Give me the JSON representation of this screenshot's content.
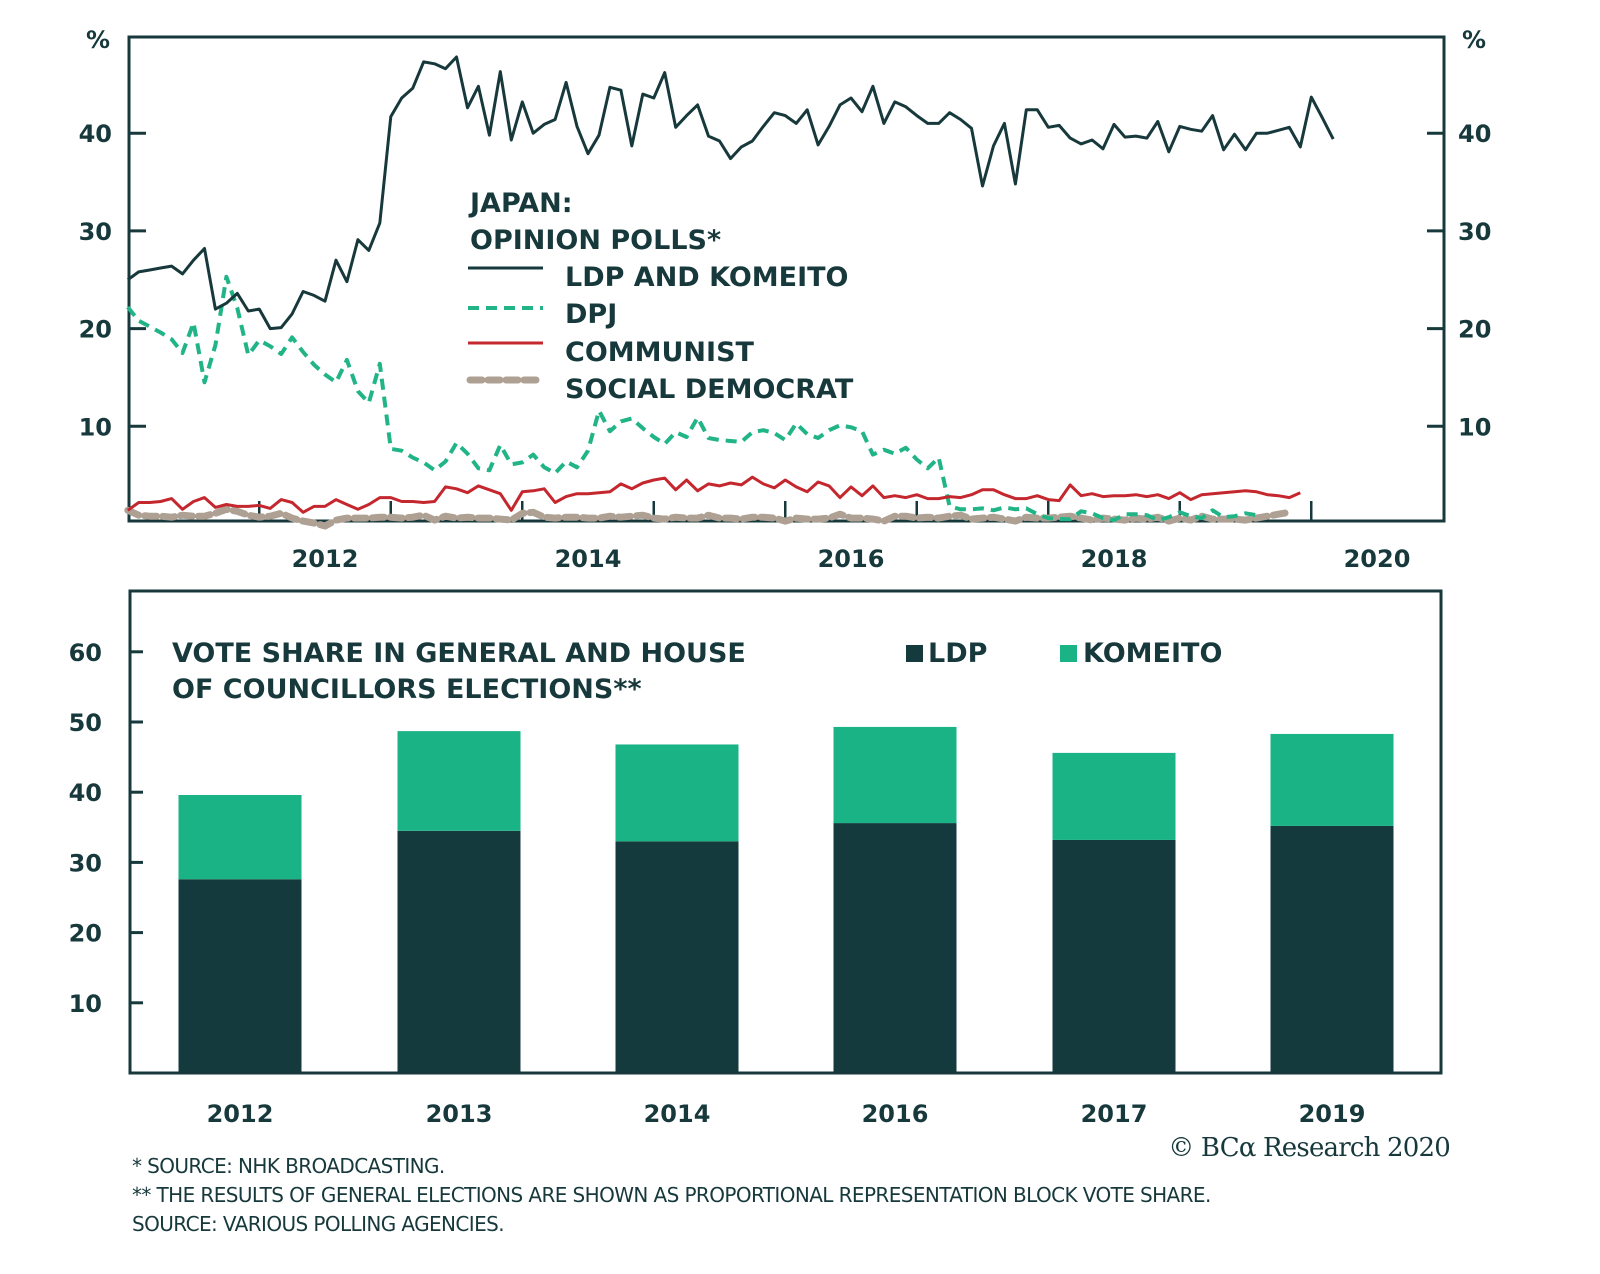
{
  "chart_data": [
    {
      "type": "line",
      "title": "JAPAN:",
      "subtitle": "OPINION POLLS*",
      "ylabel_left": "%",
      "ylabel_right": "%",
      "ylim": [
        0,
        50
      ],
      "yticks": [
        10,
        20,
        30,
        40
      ],
      "xlim": [
        2010.42,
        2020.42
      ],
      "xticks": [
        2012,
        2014,
        2016,
        2018,
        2020
      ],
      "xtick_labels": [
        "2012",
        "2014",
        "2016",
        "2018",
        "2020"
      ],
      "x_start": 2010.5,
      "x_step_months": 1,
      "legend_placement": "center-left",
      "grid": false,
      "series": [
        {
          "name": "LDP AND KOMEITO",
          "color": "#17393c",
          "style": "solid",
          "values": [
            25.0,
            25.8,
            26.0,
            26.2,
            26.4,
            25.6,
            27.0,
            28.2,
            22.0,
            22.6,
            23.6,
            21.8,
            22.0,
            20.0,
            20.1,
            21.5,
            23.8,
            23.4,
            22.8,
            27.0,
            24.8,
            29.1,
            28.0,
            30.8,
            41.7,
            43.6,
            44.6,
            47.3,
            47.1,
            46.6,
            47.8,
            42.6,
            44.8,
            39.8,
            46.3,
            39.3,
            43.2,
            40.0,
            40.9,
            41.4,
            45.2,
            40.7,
            37.9,
            39.8,
            44.7,
            44.4,
            38.7,
            44.0,
            43.6,
            46.2,
            40.6,
            41.8,
            42.9,
            39.7,
            39.2,
            37.4,
            38.6,
            39.2,
            40.7,
            42.1,
            41.8,
            41.0,
            42.4,
            38.8,
            40.7,
            42.9,
            43.6,
            42.2,
            44.8,
            41.0,
            43.2,
            42.7,
            41.8,
            41.0,
            41.0,
            42.1,
            41.4,
            40.5,
            34.6,
            38.7,
            41.0,
            34.8,
            42.4,
            42.4,
            40.6,
            40.8,
            39.5,
            38.9,
            39.3,
            38.4,
            40.9,
            39.6,
            39.7,
            39.5,
            41.2,
            38.1,
            40.7,
            40.4,
            40.2,
            41.8,
            38.3,
            39.9,
            38.3,
            40.0,
            40.0,
            40.3,
            40.6,
            38.6,
            43.7,
            41.6,
            39.4
          ]
        },
        {
          "name": "DPJ",
          "color": "#20b486",
          "style": "dashed",
          "values": [
            22.2,
            20.8,
            20.2,
            19.6,
            18.9,
            17.5,
            20.6,
            14.5,
            18.3,
            25.3,
            22.1,
            17.3,
            18.8,
            18.2,
            17.4,
            19.1,
            17.6,
            16.3,
            15.3,
            14.5,
            16.8,
            13.6,
            12.4,
            16.4,
            7.7,
            7.5,
            6.8,
            6.3,
            5.5,
            6.4,
            8.3,
            7.2,
            5.7,
            5.5,
            8.1,
            6.1,
            6.3,
            7.1,
            5.8,
            5.2,
            6.4,
            5.8,
            7.5,
            11.6,
            9.5,
            10.5,
            10.8,
            9.8,
            8.9,
            8.2,
            9.4,
            8.9,
            10.9,
            8.8,
            8.6,
            8.5,
            8.4,
            9.4,
            9.6,
            9.3,
            8.6,
            10.3,
            9.2,
            8.8,
            9.6,
            10.1,
            9.9,
            9.5,
            7.1,
            7.6,
            7.2,
            7.8,
            6.6,
            5.7,
            6.8,
            1.8,
            1.5,
            1.5,
            1.6,
            1.4,
            1.7,
            1.5,
            1.6,
            1.0,
            0.6,
            0.5,
            0.5,
            1.3,
            1.1,
            0.6,
            0.4,
            1.0,
            1.0,
            0.9,
            0.4,
            0.7,
            1.2,
            0.8,
            0.6,
            1.4,
            0.7,
            0.8,
            1.1,
            0.9
          ]
        },
        {
          "name": "COMMUNIST",
          "color": "#c4272d",
          "style": "solid",
          "values": [
            1.4,
            2.2,
            2.2,
            2.3,
            2.6,
            1.5,
            2.3,
            2.7,
            1.7,
            2.0,
            1.8,
            1.8,
            1.9,
            1.6,
            2.5,
            2.2,
            1.2,
            1.8,
            1.8,
            2.5,
            2.0,
            1.5,
            2.0,
            2.7,
            2.7,
            2.3,
            2.3,
            2.2,
            2.3,
            3.8,
            3.6,
            3.2,
            3.9,
            3.5,
            3.1,
            1.4,
            3.3,
            3.4,
            3.6,
            2.2,
            2.8,
            3.1,
            3.1,
            3.2,
            3.3,
            4.1,
            3.6,
            4.2,
            4.5,
            4.7,
            3.5,
            4.5,
            3.4,
            4.1,
            3.9,
            4.2,
            4.0,
            4.8,
            4.1,
            3.7,
            4.5,
            3.8,
            3.3,
            4.3,
            3.9,
            2.7,
            3.8,
            2.9,
            3.9,
            2.7,
            2.9,
            2.7,
            3.0,
            2.6,
            2.6,
            2.8,
            2.7,
            3.0,
            3.5,
            3.5,
            3.0,
            2.6,
            2.6,
            2.9,
            2.5,
            2.4,
            4.0,
            2.9,
            3.1,
            2.8,
            2.9,
            2.9,
            3.0,
            2.8,
            3.0,
            2.6,
            3.2,
            2.5,
            3.0,
            3.1,
            3.2,
            3.3,
            3.4,
            3.3,
            3.0,
            2.9,
            2.7,
            3.2
          ]
        },
        {
          "name": "SOCIAL DEMOCRAT",
          "color": "#aea194",
          "style": "dashed-thick",
          "values": [
            1.4,
            0.9,
            0.8,
            0.8,
            0.7,
            0.9,
            0.8,
            0.8,
            1.1,
            1.5,
            1.3,
            0.9,
            0.7,
            0.8,
            1.1,
            0.6,
            0.3,
            0.1,
            -0.2,
            0.4,
            0.6,
            0.6,
            0.6,
            0.7,
            0.7,
            0.6,
            0.7,
            0.9,
            0.4,
            0.8,
            0.6,
            0.7,
            0.6,
            0.6,
            0.5,
            0.4,
            1.1,
            1.2,
            0.7,
            0.6,
            0.7,
            0.7,
            0.6,
            0.6,
            0.8,
            0.7,
            0.8,
            0.9,
            0.6,
            0.5,
            0.7,
            0.6,
            0.6,
            0.9,
            0.6,
            0.6,
            0.5,
            0.7,
            0.7,
            0.6,
            0.3,
            0.6,
            0.5,
            0.5,
            0.6,
            1.0,
            0.6,
            0.6,
            0.5,
            0.3,
            0.8,
            0.8,
            0.6,
            0.7,
            0.6,
            0.8,
            0.9,
            0.5,
            0.6,
            0.7,
            0.5,
            0.3,
            0.7,
            0.6,
            0.6,
            0.7,
            0.8,
            0.6,
            0.4,
            0.6,
            0.5,
            0.4,
            0.6,
            0.5,
            0.7,
            0.3,
            0.6,
            0.4,
            0.8,
            0.5,
            0.5,
            0.5,
            0.4,
            0.6,
            0.8,
            1.0,
            1.2
          ]
        }
      ]
    },
    {
      "type": "bar",
      "stacked": true,
      "title": "VOTE SHARE IN GENERAL AND HOUSE",
      "title_line2": "OF COUNCILLORS ELECTIONS**",
      "ylim": [
        0,
        69
      ],
      "yticks": [
        10,
        20,
        30,
        40,
        50,
        60
      ],
      "categories": [
        "2012",
        "2013",
        "2014",
        "2016",
        "2017",
        "2019"
      ],
      "legend_placement": "top-right",
      "grid": false,
      "series": [
        {
          "name": "LDP",
          "color": "#143a3d",
          "values": [
            27.6,
            34.5,
            33.0,
            35.6,
            33.2,
            35.2
          ]
        },
        {
          "name": "KOMEITO",
          "color": "#1ab385",
          "values": [
            12.0,
            14.2,
            13.8,
            13.7,
            12.4,
            13.1
          ]
        }
      ]
    }
  ],
  "footnotes": {
    "line1": "*  SOURCE: NHK BROADCASTING.",
    "line2": "** THE RESULTS OF GENERAL ELECTIONS ARE SHOWN AS PROPORTIONAL REPRESENTATION BLOCK VOTE SHARE.",
    "line3": "SOURCE: VARIOUS POLLING AGENCIES."
  },
  "copyright": "© BCα Research 2020",
  "colors": {
    "frame": "#17393c",
    "text": "#17393c"
  }
}
